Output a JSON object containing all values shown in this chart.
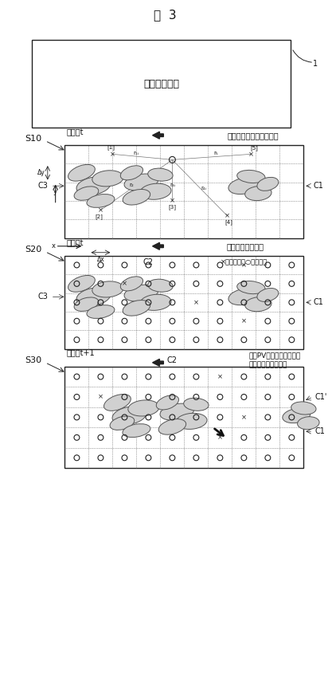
{
  "title": "図  3",
  "fig_label": "1",
  "top_box_text": "評価対象地域",
  "arrow1_text": "対象地域をメッシュ分割",
  "arrow2_text": "計測点以外を補間",
  "arrow3_text": "雲（PV出力低下）の移動\nの方向、速度の評価",
  "s10_label": "S10",
  "s20_label": "S20",
  "s30_label": "S30",
  "c1_label": "C1",
  "c1prime_label": "C1'",
  "c2_label": "C2",
  "c3_label": "C3",
  "grid1_time": "時刻：t",
  "grid2_time": "時刻：t",
  "grid3_time": "時刻：t+1",
  "legend_text": "×：計測点　○：評価点",
  "delta_y": "Δy",
  "delta_x": "Δx",
  "bg_color": "#ffffff",
  "text_color": "#111111",
  "cloud_color": "#d0d0d0",
  "cloud_edge": "#555555",
  "grid_line_color": "#555555",
  "border_color": "#222222"
}
